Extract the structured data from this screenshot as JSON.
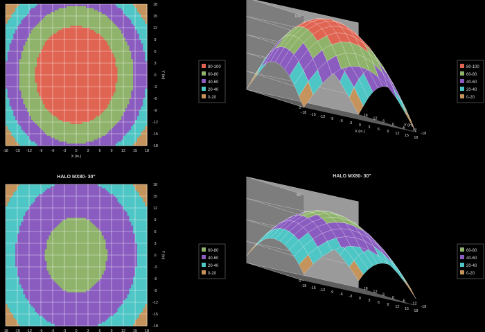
{
  "colors": {
    "bg": "#000000",
    "band_0_20": "#C5935C",
    "band_20_40": "#4EC6C6",
    "band_40_60": "#8A5CC0",
    "band_60_80": "#8FB36B",
    "band_80_100": "#E06452",
    "grid": "#FFFFFF",
    "text": "#DDDDDD",
    "wall": "#9A9A9A",
    "floor": "#5E5E5E"
  },
  "chart_data": [
    {
      "type": "heatmap",
      "subtype": "contour",
      "title": "",
      "xlabel": "X (in.)",
      "ylabel": "Y (in)",
      "x_ticks": [
        "-18",
        "-15",
        "-12",
        "-9",
        "-6",
        "-3",
        "0",
        "3",
        "6",
        "9",
        "12",
        "15",
        "18"
      ],
      "y_ticks": [
        "18",
        "15",
        "12",
        "9",
        "6",
        "3",
        "0",
        "-3",
        "-6",
        "-9",
        "-12",
        "-15",
        "-18"
      ],
      "xlim": [
        -18,
        18
      ],
      "ylim": [
        -18,
        18
      ],
      "z_peak": 100,
      "bands": [
        {
          "label": "80-100",
          "min": 80,
          "max": 100,
          "color": "#E06452"
        },
        {
          "label": "60-80",
          "min": 60,
          "max": 80,
          "color": "#8FB36B"
        },
        {
          "label": "40-60",
          "min": 40,
          "max": 60,
          "color": "#8A5CC0"
        },
        {
          "label": "20-40",
          "min": 20,
          "max": 40,
          "color": "#4EC6C6"
        },
        {
          "label": "0-20",
          "min": 0,
          "max": 20,
          "color": "#C5935C"
        }
      ],
      "legend_position": "right"
    },
    {
      "type": "area",
      "subtype": "3d-surface",
      "title": "",
      "xlabel": "X (in.)",
      "ylabel": "Y (in)",
      "zlabel": "PPFD",
      "x_ticks": [
        "-18",
        "-15",
        "-12",
        "-9",
        "-6",
        "-3",
        "0",
        "3",
        "6",
        "9",
        "12",
        "15",
        "18"
      ],
      "y_ticks": [
        "18",
        "12",
        "6",
        "0",
        "-6",
        "-12",
        "-18"
      ],
      "z_ticks": [
        "0",
        "20",
        "40",
        "60",
        "80",
        "100"
      ],
      "zlim": [
        0,
        100
      ],
      "z_peak": 100,
      "bands": [
        {
          "label": "80-100",
          "min": 80,
          "max": 100,
          "color": "#E06452"
        },
        {
          "label": "60-80",
          "min": 60,
          "max": 80,
          "color": "#8FB36B"
        },
        {
          "label": "40-60",
          "min": 40,
          "max": 60,
          "color": "#8A5CC0"
        },
        {
          "label": "20-40",
          "min": 20,
          "max": 40,
          "color": "#4EC6C6"
        },
        {
          "label": "0-20",
          "min": 0,
          "max": 20,
          "color": "#C5935C"
        }
      ],
      "legend_position": "right"
    },
    {
      "type": "heatmap",
      "subtype": "contour",
      "title": "HALO MX80- 30\"",
      "xlabel": "",
      "ylabel": "Y (in)",
      "x_ticks": [
        "-18",
        "-15",
        "-12",
        "-9",
        "-6",
        "-3",
        "0",
        "3",
        "6",
        "9",
        "12",
        "15",
        "18"
      ],
      "y_ticks": [
        "18",
        "15",
        "12",
        "9",
        "6",
        "3",
        "0",
        "-3",
        "-6",
        "-9",
        "-12",
        "-15",
        "-18"
      ],
      "xlim": [
        -18,
        18
      ],
      "ylim": [
        -18,
        18
      ],
      "z_peak": 67,
      "bands": [
        {
          "label": "60-80",
          "min": 60,
          "max": 80,
          "color": "#8FB36B"
        },
        {
          "label": "40-60",
          "min": 40,
          "max": 60,
          "color": "#8A5CC0"
        },
        {
          "label": "20-40",
          "min": 20,
          "max": 40,
          "color": "#4EC6C6"
        },
        {
          "label": "0-20",
          "min": 0,
          "max": 20,
          "color": "#C5935C"
        }
      ],
      "legend_position": "right"
    },
    {
      "type": "area",
      "subtype": "3d-surface",
      "title": "HALO MX80- 30\"",
      "xlabel": "",
      "ylabel": "",
      "zlabel": "PPFD",
      "x_ticks": [
        "-18",
        "-15",
        "-12",
        "-9",
        "-6",
        "-3",
        "0",
        "3",
        "6",
        "9",
        "12",
        "15",
        "18"
      ],
      "y_ticks": [
        "18",
        "12",
        "6",
        "0",
        "-6",
        "-12",
        "-18"
      ],
      "z_ticks": [
        "0",
        "20",
        "40",
        "60",
        "80"
      ],
      "zlim": [
        0,
        80
      ],
      "z_peak": 67,
      "bands": [
        {
          "label": "60-80",
          "min": 60,
          "max": 80,
          "color": "#8FB36B"
        },
        {
          "label": "40-60",
          "min": 40,
          "max": 60,
          "color": "#8A5CC0"
        },
        {
          "label": "20-40",
          "min": 20,
          "max": 40,
          "color": "#4EC6C6"
        },
        {
          "label": "0-20",
          "min": 0,
          "max": 20,
          "color": "#C5935C"
        }
      ],
      "legend_position": "right"
    }
  ]
}
